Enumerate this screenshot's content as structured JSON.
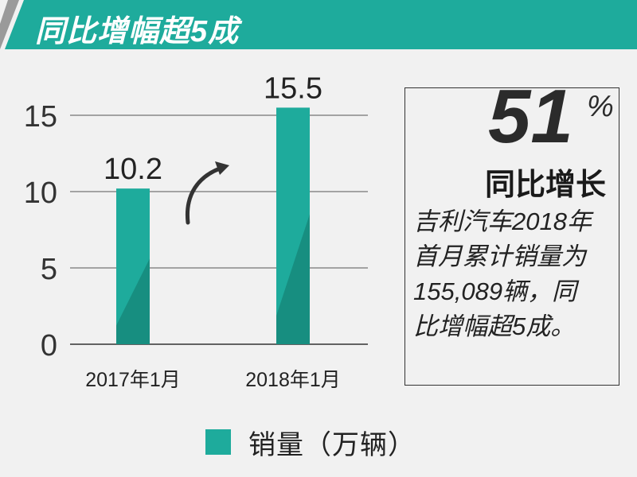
{
  "title": "同比增幅超5成",
  "chart_data": {
    "type": "bar",
    "categories": [
      "2017年1月",
      "2018年1月"
    ],
    "series": [
      {
        "name": "销量（万辆）",
        "values": [
          10.2,
          15.5
        ]
      }
    ],
    "data_labels": [
      "10.2",
      "15.5"
    ],
    "yticks": [
      "0",
      "5",
      "10",
      "15"
    ],
    "ylim": [
      0,
      16
    ],
    "grid": true,
    "legend_position": "bottom",
    "bar_color": "#1eab9c",
    "bar_shade_color": "#178e80"
  },
  "legend": {
    "label": "销量（万辆）"
  },
  "callout": {
    "number": "51",
    "percent": "%",
    "label": "同比增长",
    "lines": [
      "吉利汽车2018年",
      "首月累计销量为",
      "155,089辆，同",
      "比增幅超5成。"
    ]
  }
}
